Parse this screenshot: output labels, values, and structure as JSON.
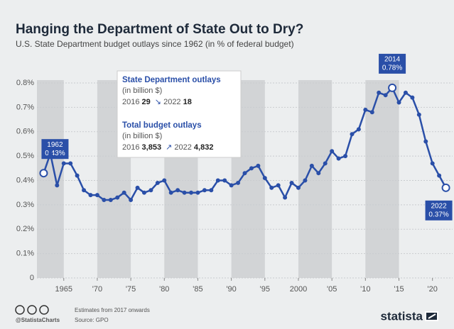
{
  "chart_data": {
    "type": "line",
    "title": "Hanging the Department of State Out to Dry?",
    "subtitle": "U.S. State Department budget outlays since 1962 (in % of federal budget)",
    "x": [
      1962,
      1963,
      1964,
      1965,
      1966,
      1967,
      1968,
      1969,
      1970,
      1971,
      1972,
      1973,
      1974,
      1975,
      1976,
      1977,
      1978,
      1979,
      1980,
      1981,
      1982,
      1983,
      1984,
      1985,
      1986,
      1987,
      1988,
      1989,
      1990,
      1991,
      1992,
      1993,
      1994,
      1995,
      1996,
      1997,
      1998,
      1999,
      2000,
      2001,
      2002,
      2003,
      2004,
      2005,
      2006,
      2007,
      2008,
      2009,
      2010,
      2011,
      2012,
      2013,
      2014,
      2015,
      2016,
      2017,
      2018,
      2019,
      2020,
      2021,
      2022
    ],
    "series": [
      {
        "name": "State Department outlays",
        "color": "#2a4fa8",
        "values": [
          0.43,
          0.51,
          0.38,
          0.47,
          0.47,
          0.42,
          0.36,
          0.34,
          0.34,
          0.32,
          0.32,
          0.33,
          0.35,
          0.32,
          0.37,
          0.35,
          0.36,
          0.39,
          0.4,
          0.35,
          0.36,
          0.35,
          0.35,
          0.35,
          0.36,
          0.36,
          0.4,
          0.4,
          0.38,
          0.39,
          0.43,
          0.45,
          0.46,
          0.41,
          0.37,
          0.38,
          0.33,
          0.39,
          0.37,
          0.4,
          0.46,
          0.43,
          0.47,
          0.52,
          0.49,
          0.5,
          0.59,
          0.61,
          0.69,
          0.68,
          0.76,
          0.75,
          0.78,
          0.72,
          0.76,
          0.74,
          0.67,
          0.56,
          0.47,
          0.42,
          0.37
        ],
        "value_labels": [
          "0.43%",
          null,
          null,
          null,
          null,
          null,
          null,
          null,
          null,
          null,
          null,
          null,
          null,
          null,
          null,
          null,
          null,
          null,
          null,
          null,
          null,
          null,
          null,
          null,
          null,
          null,
          null,
          null,
          null,
          null,
          null,
          null,
          null,
          null,
          null,
          null,
          null,
          null,
          null,
          null,
          null,
          null,
          null,
          null,
          null,
          null,
          null,
          null,
          null,
          null,
          null,
          null,
          "0.78%",
          null,
          null,
          null,
          null,
          null,
          null,
          null,
          "0.37%"
        ]
      }
    ],
    "xlim": [
      1961,
      2023
    ],
    "xticks": [
      1965,
      {
        "value": 1970,
        "label": "'70"
      },
      {
        "value": 1975,
        "label": "'75"
      },
      {
        "value": 1980,
        "label": "'80"
      },
      {
        "value": 1985,
        "label": "'85"
      },
      {
        "value": 1990,
        "label": "'90"
      },
      {
        "value": 1995,
        "label": "'95"
      },
      2000,
      {
        "value": 2005,
        "label": "'05"
      },
      {
        "value": 2010,
        "label": "'10"
      },
      {
        "value": 2015,
        "label": "'15"
      },
      {
        "value": 2020,
        "label": "'20"
      }
    ],
    "ylim": [
      0,
      0.8
    ],
    "yticks": [
      0,
      {
        "value": 0.1,
        "label": "0.1%"
      },
      {
        "value": 0.2,
        "label": "0.2%"
      },
      {
        "value": 0.3,
        "label": "0.3%"
      },
      {
        "value": 0.4,
        "label": "0.4%"
      },
      {
        "value": 0.5,
        "label": "0.5%"
      },
      {
        "value": 0.6,
        "label": "0.6%"
      },
      {
        "value": 0.7,
        "label": "0.7%"
      },
      {
        "value": 0.8,
        "label": "0.8%"
      }
    ],
    "grid": true,
    "info_box": {
      "state": {
        "title": "State Department outlays",
        "unit": "(in billion $)",
        "from_year": "2016",
        "from_value": "29",
        "to_year": "2022",
        "to_value": "18"
      },
      "total": {
        "title": "Total budget outlays",
        "unit": "(in billion $)",
        "from_year": "2016",
        "from_value": "3,853",
        "to_year": "2022",
        "to_value": "4,832"
      }
    },
    "note": "Estimates from 2017 onwards",
    "source": "Source: GPO",
    "handle": "@StatistaCharts",
    "brand": "statista"
  }
}
